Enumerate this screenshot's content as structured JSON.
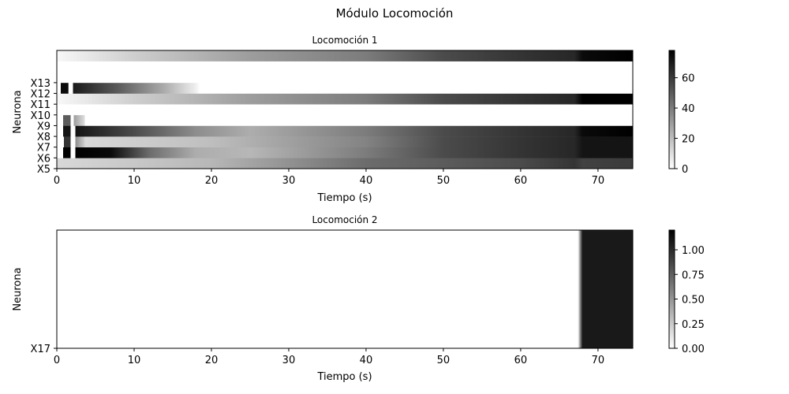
{
  "figure": {
    "title": "Módulo Locomoción"
  },
  "chart_data": [
    {
      "type": "heatmap",
      "title": "Locomoción 1",
      "xlabel": "Tiempo (s)",
      "ylabel": "Neurona",
      "xlim": [
        0,
        74.5
      ],
      "x_ticks": [
        0,
        10,
        20,
        30,
        40,
        50,
        60,
        70
      ],
      "rows": [
        "X5",
        "X6",
        "X7",
        "X8",
        "X9",
        "X10",
        "X11",
        "X12",
        "X13",
        "",
        ""
      ],
      "colormap": "gray_r",
      "colorbar": {
        "range": [
          0,
          78
        ],
        "ticks": [
          0,
          20,
          40,
          60
        ]
      },
      "cmap_min_color": "#ffffff",
      "cmap_max_color": "#000000",
      "profiles": {
        "X5": [
          [
            0,
            12
          ],
          [
            20,
            22
          ],
          [
            40,
            45
          ],
          [
            60,
            55
          ],
          [
            67,
            62
          ],
          [
            68,
            58
          ],
          [
            74.5,
            60
          ]
        ],
        "X6": [
          [
            0.8,
            0
          ],
          [
            0.81,
            80
          ],
          [
            1.8,
            80
          ],
          [
            1.81,
            0
          ],
          [
            2.4,
            0
          ],
          [
            2.41,
            80
          ],
          [
            7,
            75
          ],
          [
            12,
            45
          ],
          [
            18,
            25
          ],
          [
            25,
            22
          ],
          [
            40,
            40
          ],
          [
            50,
            55
          ],
          [
            60,
            62
          ],
          [
            67,
            66
          ],
          [
            68,
            72
          ],
          [
            74.5,
            72
          ]
        ],
        "X7": [
          [
            0.9,
            0
          ],
          [
            0.91,
            62
          ],
          [
            1.8,
            62
          ],
          [
            1.81,
            0
          ],
          [
            2.4,
            0
          ],
          [
            2.41,
            35
          ],
          [
            3.6,
            15
          ],
          [
            3.61,
            12
          ],
          [
            20,
            20
          ],
          [
            40,
            38
          ],
          [
            50,
            55
          ],
          [
            60,
            62
          ],
          [
            67,
            66
          ],
          [
            68,
            72
          ],
          [
            74.5,
            72
          ]
        ],
        "X8": [
          [
            0.8,
            0
          ],
          [
            0.81,
            72
          ],
          [
            1.8,
            72
          ],
          [
            1.81,
            0
          ],
          [
            2.4,
            0
          ],
          [
            2.41,
            72
          ],
          [
            10,
            55
          ],
          [
            18,
            35
          ],
          [
            25,
            25
          ],
          [
            40,
            40
          ],
          [
            50,
            55
          ],
          [
            60,
            62
          ],
          [
            67,
            66
          ],
          [
            68,
            75
          ],
          [
            74.5,
            78
          ]
        ],
        "X9": [
          [
            0.8,
            0
          ],
          [
            0.81,
            50
          ],
          [
            1.8,
            50
          ],
          [
            1.81,
            0
          ],
          [
            2.2,
            0
          ],
          [
            2.21,
            30
          ],
          [
            3.6,
            10
          ],
          [
            3.61,
            0
          ],
          [
            74.5,
            0
          ]
        ],
        "X10": [
          [
            0,
            0
          ],
          [
            74.5,
            0
          ]
        ],
        "X11": [
          [
            0,
            2
          ],
          [
            10,
            15
          ],
          [
            25,
            30
          ],
          [
            40,
            40
          ],
          [
            50,
            55
          ],
          [
            60,
            62
          ],
          [
            67,
            66
          ],
          [
            68,
            78
          ],
          [
            74.5,
            78
          ]
        ],
        "X12": [
          [
            0.5,
            0
          ],
          [
            0.51,
            75
          ],
          [
            1.5,
            75
          ],
          [
            1.51,
            0
          ],
          [
            2.1,
            0
          ],
          [
            2.11,
            70
          ],
          [
            8,
            50
          ],
          [
            14,
            25
          ],
          [
            18,
            5
          ],
          [
            18.5,
            0
          ],
          [
            74.5,
            0
          ]
        ],
        "X13": [
          [
            0,
            0
          ],
          [
            74.5,
            0
          ]
        ],
        "ROW10": [
          [
            0,
            0
          ],
          [
            74.5,
            0
          ]
        ],
        "ROW11": [
          [
            0,
            2
          ],
          [
            10,
            15
          ],
          [
            25,
            30
          ],
          [
            40,
            40
          ],
          [
            50,
            55
          ],
          [
            60,
            62
          ],
          [
            67,
            66
          ],
          [
            68,
            75
          ],
          [
            74.5,
            78
          ]
        ]
      }
    },
    {
      "type": "heatmap",
      "title": "Locomoción 2",
      "xlabel": "Tiempo (s)",
      "ylabel": "Neurona",
      "xlim": [
        0,
        74.5
      ],
      "x_ticks": [
        0,
        10,
        20,
        30,
        40,
        50,
        60,
        70
      ],
      "rows": [
        "X17"
      ],
      "colormap": "gray_r",
      "colorbar": {
        "range": [
          0,
          1.2
        ],
        "ticks": [
          "0.00",
          "0.25",
          "0.50",
          "0.75",
          "1.00"
        ]
      },
      "profiles": {
        "X17": [
          [
            0,
            0
          ],
          [
            67.4,
            0
          ],
          [
            68,
            1.08
          ],
          [
            74.5,
            1.08
          ]
        ]
      }
    }
  ]
}
